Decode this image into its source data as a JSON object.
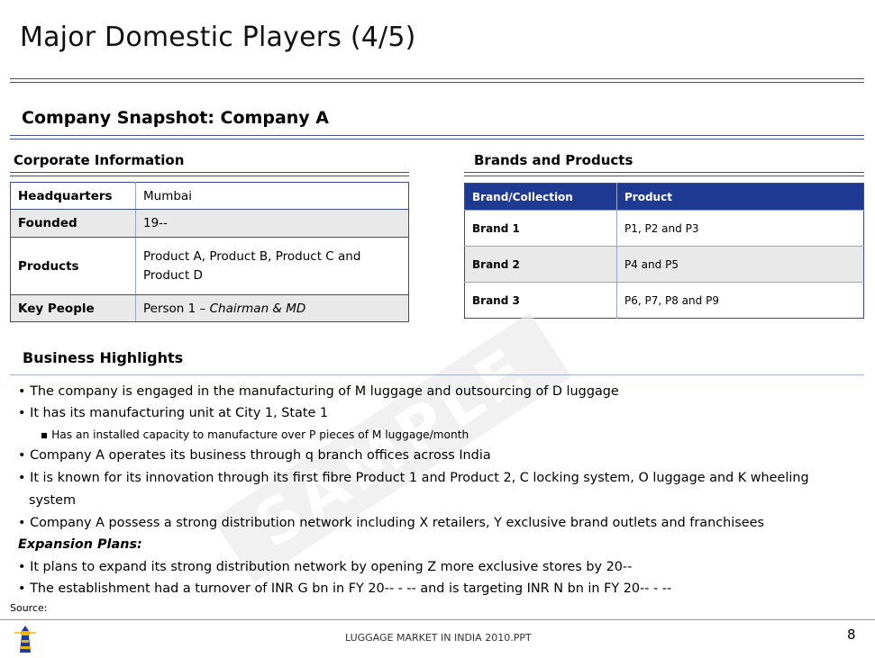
{
  "slide_title": "Major Domestic Players (4/5)",
  "subtitle": "Company Snapshot: Company A",
  "corporate": {
    "heading": "Corporate Information",
    "rows": [
      {
        "label": "Headquarters",
        "value": "Mumbai"
      },
      {
        "label": "Founded",
        "value": "19--"
      },
      {
        "label": "Products",
        "value": "Product A, Product B, Product C and Product D"
      },
      {
        "label": "Key People",
        "value_name": "Person 1",
        "value_sep": " – ",
        "value_role": "Chairman & MD"
      }
    ]
  },
  "brands": {
    "heading": "Brands and Products",
    "col_brand": "Brand/Collection",
    "col_product": "Product",
    "rows": [
      {
        "brand": "Brand 1",
        "product": "P1, P2 and P3"
      },
      {
        "brand": "Brand 2",
        "product": "P4 and P5"
      },
      {
        "brand": "Brand 3",
        "product": "P6, P7, P8 and P9"
      }
    ]
  },
  "highlights": {
    "heading": "Business Highlights",
    "bullets": [
      "The company is engaged in the manufacturing of M luggage and outsourcing of D luggage",
      "It has its manufacturing unit at City 1, State 1",
      "Has an installed capacity to manufacture over P pieces of M luggage/month",
      "Company A operates its business through q branch offices across India",
      "It is known for its innovation through its first fibre Product 1 and Product 2, C locking system, O luggage and K wheeling",
      "system",
      "Company A possess a strong distribution network including X retailers, Y exclusive brand outlets and franchisees"
    ],
    "expansion_heading": "Expansion Plans:",
    "expansion_bullets": [
      "It plans to expand its strong distribution network by opening Z more exclusive stores by 20--",
      "The establishment had a turnover of INR G bn in FY 20-- - -- and is targeting INR N bn in FY 20-- - --"
    ]
  },
  "watermark": "SAMPLE",
  "source_label": "Source:",
  "footer_text": "LUGGAGE MARKET IN INDIA 2010.PPT",
  "page_number": "8",
  "logo_icon": "lighthouse-icon",
  "colors": {
    "header_blue": "#1f3a93",
    "rule_blue": "#3c4f9a",
    "row_gray": "#e9e9e9"
  }
}
